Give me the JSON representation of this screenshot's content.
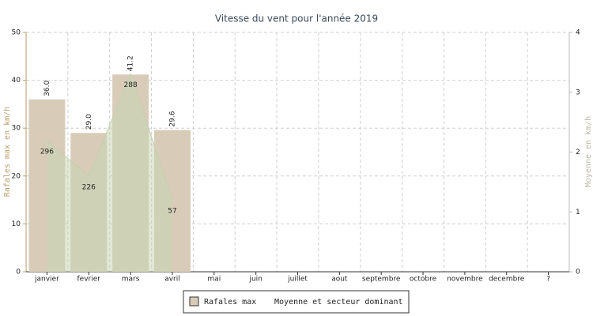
{
  "chart_data": {
    "type": "bar",
    "title": "Vitesse du vent pour l'année 2019",
    "y_label": "Rafales max en km/h",
    "y2_label": "Moyenne en km/h",
    "categories": [
      "janvier",
      "fevrier",
      "mars",
      "avril",
      "mai",
      "juin",
      "juillet",
      "aout",
      "septembre",
      "octobre",
      "novembre",
      "decembre",
      "?"
    ],
    "series": [
      {
        "name": "Rafales max",
        "color": "#d8ccb8",
        "values": [
          36.0,
          29.0,
          41.2,
          29.6,
          null,
          null,
          null,
          null,
          null,
          null,
          null,
          null,
          null
        ],
        "value_labels": [
          "36.0",
          "29.0",
          "41.2",
          "29.6",
          null,
          null,
          null,
          null,
          null,
          null,
          null,
          null,
          null
        ]
      },
      {
        "name": "Moyenne et secteur dominant",
        "color": "#c9d6b4",
        "axis": "y2",
        "type": "area",
        "values": [
          2.19,
          1.6,
          3.31,
          1.2,
          null,
          null,
          null,
          null,
          null,
          null,
          null,
          null,
          null
        ],
        "sector_labels": [
          296,
          226,
          288,
          57,
          null,
          null,
          null,
          null,
          null,
          null,
          null,
          null,
          null
        ]
      }
    ],
    "ylim": [
      0,
      50
    ],
    "yticks": [
      0,
      10,
      20,
      30,
      40,
      50
    ],
    "y2lim": [
      0,
      4
    ],
    "y2ticks": [
      0,
      1,
      2,
      3,
      4
    ],
    "grid": true
  }
}
